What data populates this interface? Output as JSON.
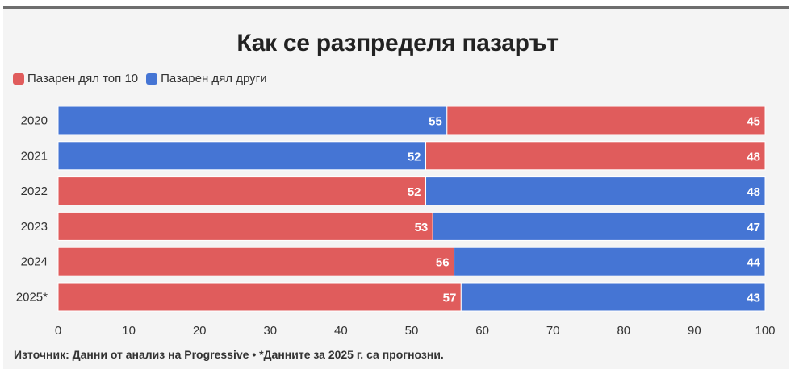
{
  "colors": {
    "top10": "#e05c5c",
    "others": "#4575d4"
  },
  "chart_data": {
    "type": "bar",
    "orientation": "horizontal",
    "stacked": true,
    "title": "Как се разпределя пазарът",
    "legend": [
      "Пазарен дял топ 10",
      "Пазарен дял други"
    ],
    "legend_position": "top-left",
    "categories": [
      "2020",
      "2021",
      "2022",
      "2023",
      "2024",
      "2025*"
    ],
    "series": [
      {
        "name": "Пазарен дял топ 10",
        "values": [
          45,
          48,
          52,
          53,
          56,
          57
        ]
      },
      {
        "name": "Пазарен дял други",
        "values": [
          55,
          52,
          48,
          47,
          44,
          43
        ]
      }
    ],
    "segment_order": [
      [
        "others",
        "top10"
      ],
      [
        "others",
        "top10"
      ],
      [
        "top10",
        "others"
      ],
      [
        "top10",
        "others"
      ],
      [
        "top10",
        "others"
      ],
      [
        "top10",
        "others"
      ]
    ],
    "xlim": [
      0,
      100
    ],
    "xticks": [
      "0",
      "10",
      "20",
      "30",
      "40",
      "50",
      "60",
      "70",
      "80",
      "90",
      "100"
    ],
    "grid": false
  },
  "source": "Източник: Данни от анализ на Progressive • *Данните за 2025 г. са прогнозни."
}
